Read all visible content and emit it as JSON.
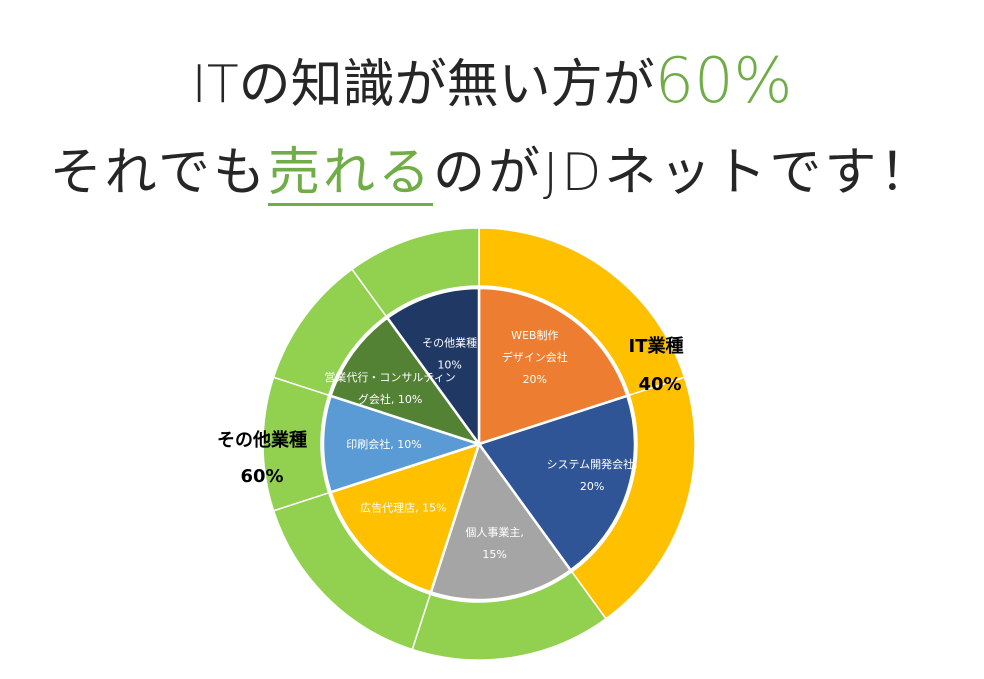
{
  "headline": {
    "line1_prefix": "ITの知識が無い方が",
    "line1_highlight": "60%",
    "line2_prefix": "それでも",
    "line2_highlight": "売れる",
    "line2_suffix": "のがJDネットです！"
  },
  "colors": {
    "accent": "#70ad47",
    "headline_text": "#262626",
    "outer_it": "#ffc000",
    "outer_other": "#92d050"
  },
  "chart_data": {
    "type": "pie",
    "subtype": "nested-donut",
    "outer": {
      "slices": [
        {
          "label": "IT業種",
          "value": 40,
          "value_label": "40%",
          "color": "#ffc000"
        },
        {
          "label": "その他業種",
          "value": 60,
          "value_label": "60%",
          "color": "#92d050"
        }
      ]
    },
    "inner": {
      "slices": [
        {
          "label_lines": [
            "WEB制作",
            "デザイン会社",
            "20%"
          ],
          "value": 20,
          "color": "#ed7d31"
        },
        {
          "label_lines": [
            "システム開発会社,",
            "20%"
          ],
          "value": 20,
          "color": "#2f5597"
        },
        {
          "label_lines": [
            "個人事業主,",
            "15%"
          ],
          "value": 15,
          "color": "#a5a5a5"
        },
        {
          "label_lines": [
            "広告代理店, 15%"
          ],
          "value": 15,
          "color": "#ffc000"
        },
        {
          "label_lines": [
            "印刷会社, 10%"
          ],
          "value": 10,
          "color": "#5b9bd5"
        },
        {
          "label_lines": [
            "営業代行・コンサルティン",
            "グ会社, 10%"
          ],
          "value": 10,
          "color": "#548235"
        },
        {
          "label_lines": [
            "その他業種",
            "10%"
          ],
          "value": 10,
          "color": "#203864"
        }
      ]
    }
  }
}
